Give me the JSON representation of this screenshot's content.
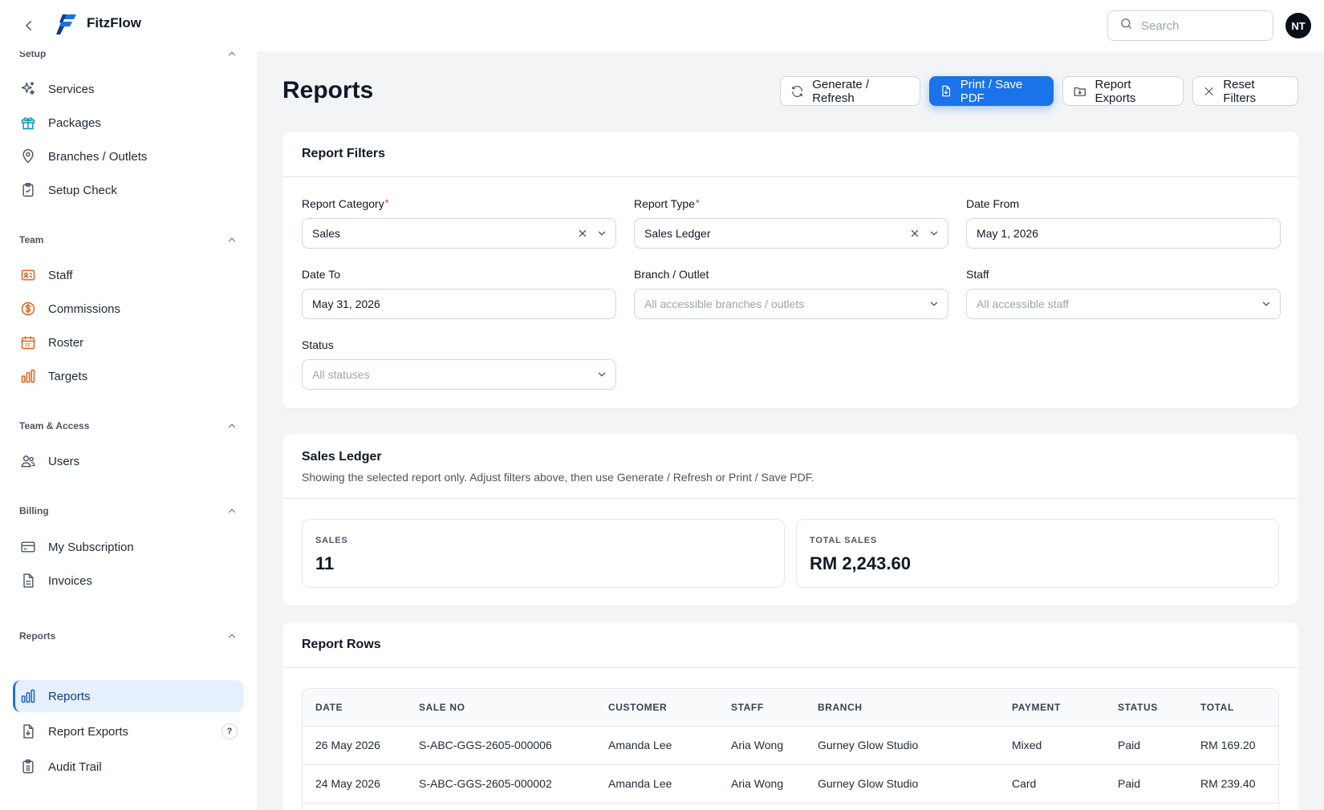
{
  "app": {
    "name": "FitzFlow"
  },
  "search": {
    "placeholder": "Search"
  },
  "user": {
    "initials": "NT"
  },
  "sidebar": {
    "sections": [
      {
        "title": "Setup",
        "items": [
          {
            "label": "Services",
            "icon": "sparkles-icon"
          },
          {
            "label": "Packages",
            "icon": "gift-icon"
          },
          {
            "label": "Branches / Outlets",
            "icon": "map-pin-icon"
          },
          {
            "label": "Setup Check",
            "icon": "clipboard-check-icon"
          }
        ]
      },
      {
        "title": "Team",
        "items": [
          {
            "label": "Staff",
            "icon": "id-card-icon"
          },
          {
            "label": "Commissions",
            "icon": "dollar-circle-icon"
          },
          {
            "label": "Roster",
            "icon": "calendar-icon"
          },
          {
            "label": "Targets",
            "icon": "bar-chart-icon"
          }
        ]
      },
      {
        "title": "Team & Access",
        "items": [
          {
            "label": "Users",
            "icon": "users-icon"
          }
        ]
      },
      {
        "title": "Billing",
        "items": [
          {
            "label": "My Subscription",
            "icon": "credit-card-icon"
          },
          {
            "label": "Invoices",
            "icon": "document-icon"
          }
        ]
      },
      {
        "title": "Reports",
        "items": [
          {
            "label": "Reports",
            "icon": "bar-chart-icon",
            "active": true
          },
          {
            "label": "Report Exports",
            "icon": "file-download-icon",
            "badge": "?"
          },
          {
            "label": "Audit Trail",
            "icon": "clipboard-list-icon"
          }
        ]
      }
    ]
  },
  "page": {
    "title": "Reports",
    "actions": {
      "generate": "Generate / Refresh",
      "print": "Print / Save PDF",
      "exports": "Report Exports",
      "reset": "Reset Filters"
    }
  },
  "filters": {
    "title": "Report Filters",
    "report_category": {
      "label": "Report Category",
      "required": "*",
      "value": "Sales"
    },
    "report_type": {
      "label": "Report Type",
      "required": "*",
      "value": "Sales Ledger"
    },
    "date_from": {
      "label": "Date From",
      "value": "May 1, 2026"
    },
    "date_to": {
      "label": "Date To",
      "value": "May 31, 2026"
    },
    "branch": {
      "label": "Branch / Outlet",
      "placeholder": "All accessible branches / outlets"
    },
    "staff": {
      "label": "Staff",
      "placeholder": "All accessible staff"
    },
    "status": {
      "label": "Status",
      "placeholder": "All statuses"
    }
  },
  "ledger": {
    "title": "Sales Ledger",
    "subtitle": "Showing the selected report only. Adjust filters above, then use Generate / Refresh or Print / Save PDF.",
    "stats": [
      {
        "label": "SALES",
        "value": "11"
      },
      {
        "label": "TOTAL SALES",
        "value": "RM 2,243.60"
      }
    ]
  },
  "rows_card": {
    "title": "Report Rows",
    "columns": [
      "DATE",
      "SALE NO",
      "CUSTOMER",
      "STAFF",
      "BRANCH",
      "PAYMENT",
      "STATUS",
      "TOTAL"
    ],
    "rows": [
      [
        "26 May 2026",
        "S-ABC-GGS-2605-000006",
        "Amanda Lee",
        "Aria Wong",
        "Gurney Glow Studio",
        "Mixed",
        "Paid",
        "RM 169.20"
      ],
      [
        "24 May 2026",
        "S-ABC-GGS-2605-000002",
        "Amanda Lee",
        "Aria Wong",
        "Gurney Glow Studio",
        "Card",
        "Paid",
        "RM 239.40"
      ],
      [
        "",
        "",
        "",
        "",
        "",
        "",
        "",
        ""
      ]
    ]
  },
  "colors": {
    "accent": "#1a73e8",
    "active_bg": "#e6f0fd",
    "team_icon": "#ea580c",
    "setup_icon": "#475569"
  }
}
